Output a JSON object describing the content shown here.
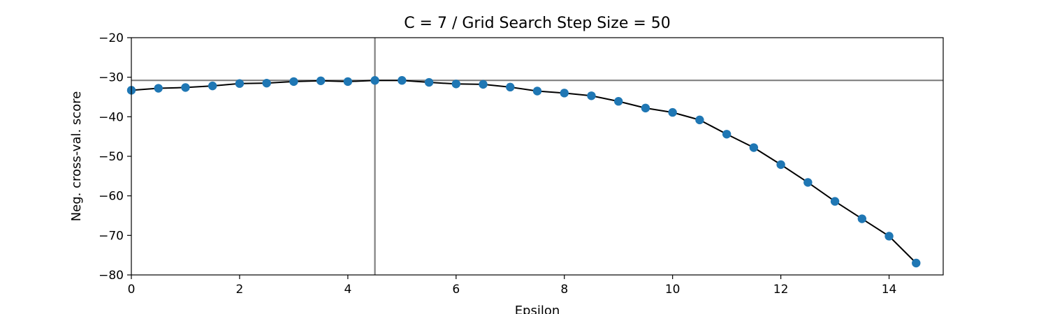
{
  "chart_data": {
    "type": "scatter",
    "title": "C = 7 / Grid Search Step Size = 50",
    "xlabel": "Epsilon",
    "ylabel": "Neg. cross-val. score",
    "xlim": [
      0,
      15
    ],
    "ylim": [
      -80,
      -20
    ],
    "x_ticks": [
      0,
      2,
      4,
      6,
      8,
      10,
      12,
      14
    ],
    "y_ticks": [
      -80,
      -70,
      -60,
      -50,
      -40,
      -30,
      -20
    ],
    "x_tick_labels": [
      "0",
      "2",
      "4",
      "6",
      "8",
      "10",
      "12",
      "14"
    ],
    "y_tick_labels": [
      "−80",
      "−70",
      "−60",
      "−50",
      "−40",
      "−30",
      "−20"
    ],
    "grid": false,
    "reference_lines": {
      "vertical_x": 4.5,
      "horizontal_y": -30.8
    },
    "series": [
      {
        "x": [
          0,
          0.5,
          1,
          1.5,
          2,
          2.5,
          3,
          3.5,
          4,
          4.5,
          5,
          5.5,
          6,
          6.5,
          7,
          7.5,
          8,
          8.5,
          9,
          9.5,
          10,
          10.5,
          11,
          11.5,
          12,
          12.5,
          13,
          13.5,
          14,
          14.5
        ],
        "y": [
          -33.3,
          -32.8,
          -32.6,
          -32.2,
          -31.6,
          -31.5,
          -31.1,
          -30.9,
          -31.1,
          -30.8,
          -30.8,
          -31.3,
          -31.7,
          -31.8,
          -32.5,
          -33.5,
          -34.0,
          -34.7,
          -36.1,
          -37.8,
          -38.9,
          -40.8,
          -44.4,
          -47.8,
          -52.1,
          -56.6,
          -61.4,
          -65.8,
          -70.2,
          -77.0
        ],
        "marker_color": "#1f77b4",
        "line_color": "#000000"
      }
    ],
    "reference_line_color": "#808080"
  }
}
